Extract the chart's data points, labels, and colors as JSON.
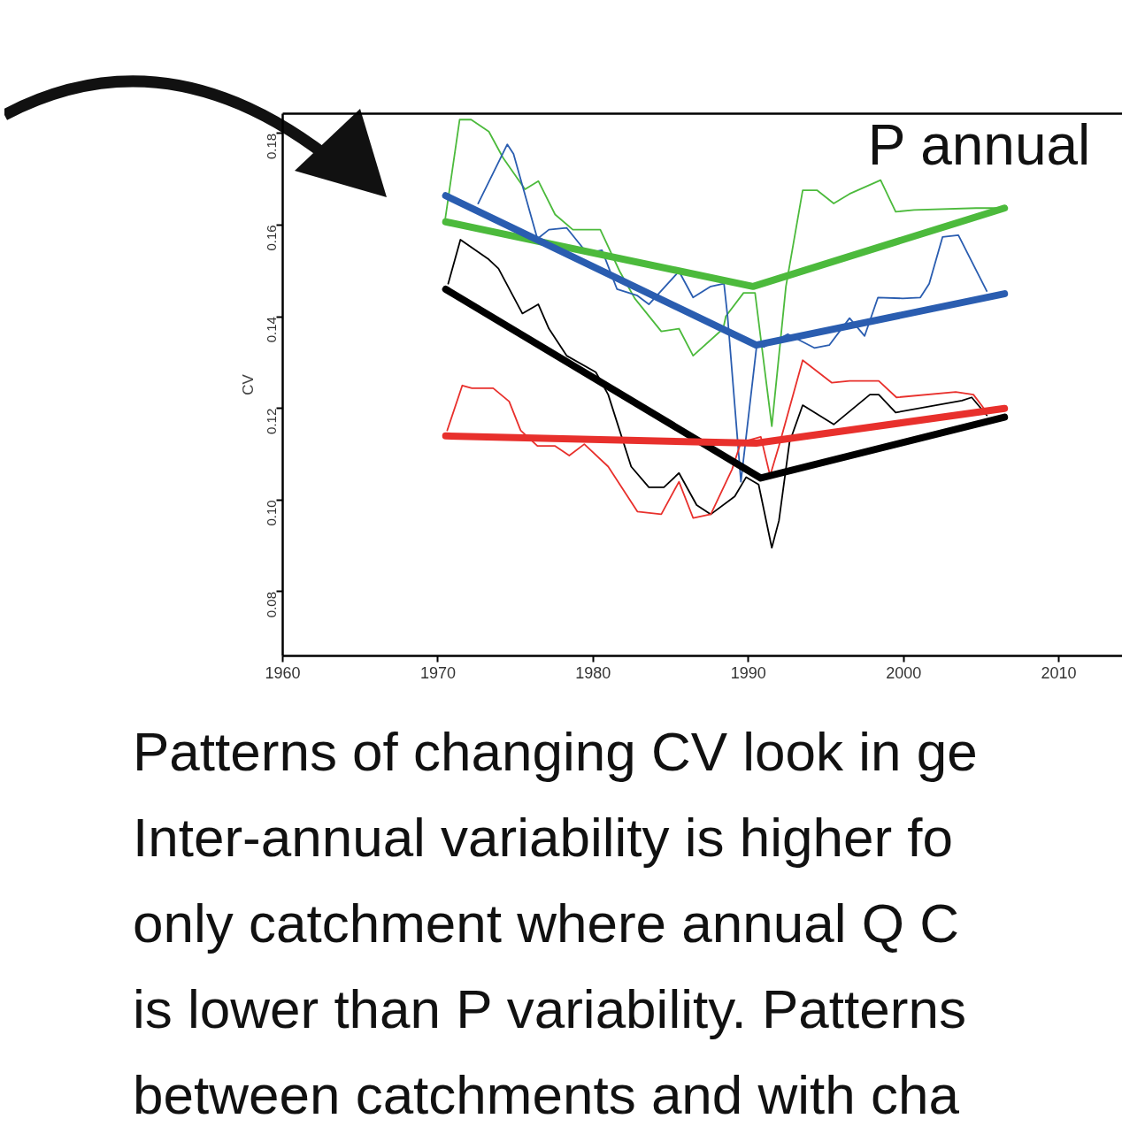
{
  "chart_data": {
    "type": "line",
    "title": "P annual",
    "ylabel": "CV",
    "xlim": [
      1960,
      2014.1
    ],
    "xticks": [
      1960,
      1970,
      1980,
      1990,
      2000,
      2010
    ],
    "ylim": [
      0.066,
      0.1843
    ],
    "yticks": [
      0.08,
      {
        "value": 0.1,
        "label": "0.10"
      },
      0.12,
      0.14,
      0.16,
      0.18
    ],
    "grid": false,
    "series": [
      {
        "color": "#4cba3c",
        "x": [
          1970.43,
          1971.4,
          1972.14,
          1973.28,
          1974.19,
          1975.61,
          1976.47,
          1977.55,
          1978.69,
          1980.46,
          1981.71,
          1982.68,
          1984.39,
          1985.53,
          1986.44,
          1988.38,
          1988.55,
          1989.69,
          1990.43,
          1991.51,
          1992.42,
          1993.5,
          1994.42,
          1995.5,
          1996.52,
          1998.52,
          1999.49,
          2000.68,
          2004.67,
          2006.6
        ],
        "values": [
          0.1604,
          0.183,
          0.183,
          0.1804,
          0.1747,
          0.1678,
          0.1696,
          0.1623,
          0.159,
          0.159,
          0.1499,
          0.144,
          0.1368,
          0.1374,
          0.1315,
          0.1374,
          0.1401,
          0.1452,
          0.1452,
          0.1161,
          0.1466,
          0.1676,
          0.1676,
          0.1647,
          0.1668,
          0.1698,
          0.1629,
          0.1633,
          0.1637,
          0.1637
        ]
      },
      {
        "color": "#2a5db0",
        "x": [
          1972.59,
          1974.47,
          1974.87,
          1976.41,
          1977.15,
          1978.29,
          1979.6,
          1980.57,
          1981.54,
          1982.85,
          1983.59,
          1985.53,
          1986.44,
          1987.58,
          1988.43,
          1988.66,
          1989.52,
          1990.54,
          1991.0,
          1992.54,
          1994.25,
          1995.21,
          1996.52,
          1997.49,
          1998.35,
          1999.94,
          2001.08,
          2001.65,
          2002.51,
          2003.53,
          2005.36
        ],
        "values": [
          0.1647,
          0.1776,
          0.1755,
          0.157,
          0.159,
          0.1594,
          0.1539,
          0.1545,
          0.146,
          0.1446,
          0.1427,
          0.1499,
          0.1442,
          0.1466,
          0.1472,
          0.1401,
          0.104,
          0.1338,
          0.1334,
          0.1362,
          0.1332,
          0.1338,
          0.1397,
          0.1358,
          0.1442,
          0.144,
          0.1442,
          0.1472,
          0.1574,
          0.1578,
          0.1456
        ]
      },
      {
        "color": "#000000",
        "x": [
          1970.66,
          1971.45,
          1973.28,
          1973.9,
          1975.44,
          1976.47,
          1977.15,
          1978.29,
          1980.17,
          1980.97,
          1982.45,
          1983.59,
          1984.56,
          1985.53,
          1986.67,
          1987.58,
          1989.12,
          1989.86,
          1990.66,
          1991.51,
          1991.97,
          1992.65,
          1993.5,
          1995.5,
          1997.83,
          1998.4,
          1999.49,
          2003.76,
          2004.39,
          2005.36
        ],
        "values": [
          0.1472,
          0.1568,
          0.1525,
          0.1505,
          0.1407,
          0.1427,
          0.1374,
          0.1315,
          0.1279,
          0.123,
          0.1073,
          0.1028,
          0.1028,
          0.1059,
          0.0989,
          0.0969,
          0.1008,
          0.105,
          0.1034,
          0.0896,
          0.0955,
          0.1126,
          0.1207,
          0.1165,
          0.123,
          0.123,
          0.1191,
          0.1217,
          0.1224,
          0.1185
        ]
      },
      {
        "color": "#e8302c",
        "x": [
          1970.6,
          1971.57,
          1972.19,
          1973.56,
          1974.59,
          1975.33,
          1976.41,
          1977.55,
          1978.46,
          1979.43,
          1980.97,
          1982.85,
          1984.39,
          1985.53,
          1986.44,
          1987.58,
          1988.95,
          1989.52,
          1990.8,
          1991.4,
          1991.97,
          1993.5,
          1995.38,
          1996.52,
          1998.4,
          1999.54,
          2003.36,
          2004.5,
          2005.24
        ],
        "values": [
          0.1152,
          0.125,
          0.1244,
          0.1244,
          0.1215,
          0.1152,
          0.1118,
          0.1118,
          0.1097,
          0.1122,
          0.1073,
          0.0975,
          0.0969,
          0.104,
          0.0961,
          0.0969,
          0.1067,
          0.1126,
          0.1138,
          0.1053,
          0.1118,
          0.1305,
          0.1256,
          0.126,
          0.126,
          0.1224,
          0.1236,
          0.123,
          0.1197
        ]
      },
      {
        "color": "#4cba3c",
        "x": [
          1970.5,
          1990.3,
          2006.5
        ],
        "values": [
          0.1607,
          0.1466,
          0.1637
        ]
      },
      {
        "color": "#2a5db0",
        "x": [
          1970.5,
          1990.5,
          2006.5
        ],
        "values": [
          0.1664,
          0.1338,
          0.145
        ]
      },
      {
        "color": "#000000",
        "x": [
          1970.5,
          1990.8,
          2006.5
        ],
        "values": [
          0.146,
          0.1048,
          0.1181
        ]
      },
      {
        "color": "#e8302c",
        "x": [
          1970.5,
          1990.5,
          2006.5
        ],
        "values": [
          0.114,
          0.1124,
          0.12
        ]
      }
    ],
    "annotations": [
      "Patterns of changing CV look in ge",
      "Inter-annual variability is higher fo",
      "only catchment where annual Q C",
      "is lower than P variability. Patterns",
      "between catchments and with cha"
    ]
  }
}
